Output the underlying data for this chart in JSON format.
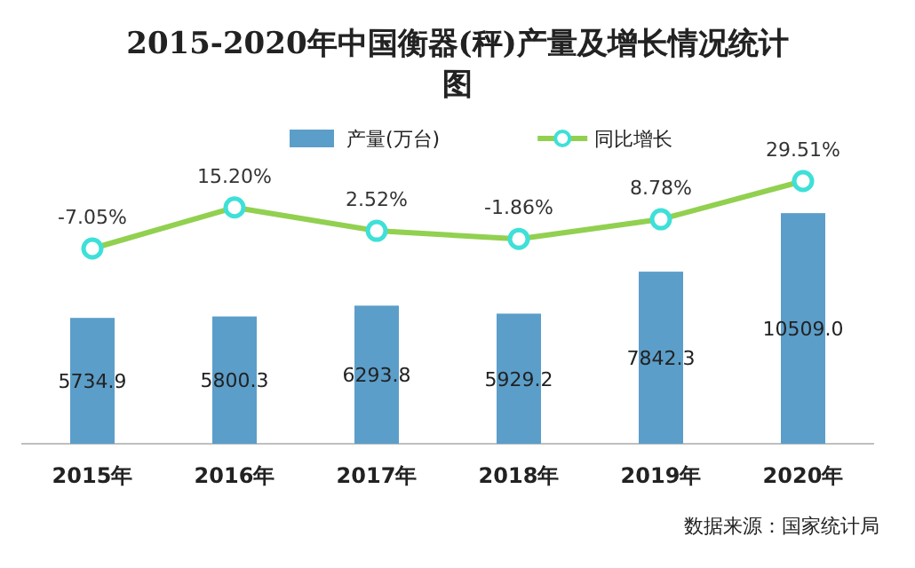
{
  "chart_data": {
    "type": "bar",
    "title": "2015-2020年中国衡器(秤)产量及增长情况统计图",
    "categories": [
      "2015年",
      "2016年",
      "2017年",
      "2018年",
      "2019年",
      "2020年"
    ],
    "series": [
      {
        "name": "产量(万台)",
        "color": "#5b9ec9",
        "values": [
          5734.9,
          5800.3,
          6293.8,
          5929.2,
          7842.3,
          10509.0
        ],
        "value_labels": [
          "5734.9",
          "5800.3",
          "6293.8",
          "5929.2",
          "7842.3",
          "10509.0"
        ]
      },
      {
        "name": "同比增长",
        "type": "line",
        "axis": "y2",
        "color": "#92d050",
        "values": [
          -7.05,
          15.2,
          2.52,
          -1.86,
          8.78,
          29.51
        ],
        "value_labels": [
          "-7.05%",
          "15.20%",
          "2.52%",
          "-1.86%",
          "8.78%",
          "29.51%"
        ]
      }
    ],
    "marker": "circle",
    "legend": "top",
    "annotations": [
      "数据来源：国家统计局"
    ]
  }
}
